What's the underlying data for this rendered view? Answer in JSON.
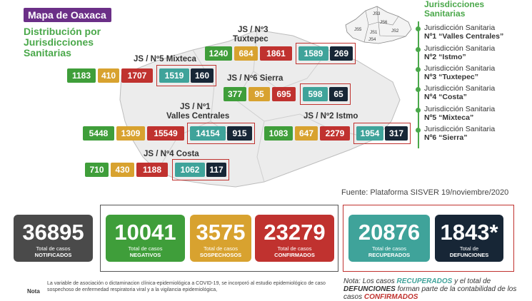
{
  "header": {
    "title": "Mapa de Oaxaca",
    "subtitle": "Distribución por Jurisdicciones Sanitarias"
  },
  "jurisdictions": {
    "tuxtepec": {
      "label1": "JS / Nº3",
      "label2": "Tuxtepec",
      "values": [
        "1240",
        "684",
        "1861",
        "1589",
        "269"
      ]
    },
    "mixteca": {
      "label1": "JS / Nº5 Mixteca",
      "values": [
        "1183",
        "410",
        "1707",
        "1519",
        "160"
      ]
    },
    "sierra": {
      "label1": "JS / Nº6 Sierra",
      "values": [
        "377",
        "95",
        "695",
        "598",
        "65"
      ]
    },
    "valles": {
      "label1": "JS / Nº1",
      "label2": "Valles Centrales",
      "values": [
        "5448",
        "1309",
        "15549",
        "14154",
        "915"
      ]
    },
    "istmo": {
      "label1": "JS / Nº2 Istmo",
      "values": [
        "1083",
        "647",
        "2279",
        "1954",
        "317"
      ]
    },
    "costa": {
      "label1": "JS / Nº4 Costa",
      "values": [
        "710",
        "430",
        "1188",
        "1062",
        "117"
      ]
    }
  },
  "legend": {
    "title": "Jurisdicciones Sanitarias",
    "items": [
      {
        "line1": "Jurisdicción Sanitaria",
        "line2": "Nº1 “Valles Centrales”"
      },
      {
        "line1": "Jurisdicción Sanitaria",
        "line2": "Nº2 “Istmo”"
      },
      {
        "line1": "Jurisdicción Sanitaria",
        "line2": "Nº3 “Tuxtepec”"
      },
      {
        "line1": "Jurisdicción Sanitaria",
        "line2": "Nº4 “Costa”"
      },
      {
        "line1": "Jurisdicción Sanitaria",
        "line2": "Nº5 “Mixteca”"
      },
      {
        "line1": "Jurisdicción Sanitaria",
        "line2": "Nº6 “Sierra”"
      }
    ],
    "minimap_labels": [
      "JS3",
      "JS6",
      "JS5",
      "JS1",
      "JS2",
      "JS4"
    ]
  },
  "source": "Fuente: Plataforma SISVER 19/noviembre/2020",
  "totals": [
    {
      "value": "36895",
      "line1": "Total de casos",
      "line2": "NOTIFICADOS",
      "color": "#4a4a4a"
    },
    {
      "value": "10041",
      "line1": "Total de casos",
      "line2": "NEGATIVOS",
      "color": "#3f9e3a"
    },
    {
      "value": "3575",
      "line1": "Total de casos",
      "line2": "SOSPECHOSOS",
      "color": "#d8a22f"
    },
    {
      "value": "23279",
      "line1": "Total de casos",
      "line2": "CONFIRMADOS",
      "color": "#c0322f"
    },
    {
      "value": "20876",
      "line1": "Total de casos",
      "line2": "RECUPERADOS",
      "color": "#3fa39a"
    },
    {
      "value": "1843*",
      "line1": "Total de",
      "line2": "DEFUNCIONES",
      "color": "#172636"
    }
  ],
  "notes": {
    "label": "Nota",
    "text": "La variable de asociación o dictaminacion clínica-epidemiológica a COVID-19, se incorporó al estudio epidemiológico de caso sospechoso de enfermedad respiratoria viral y a la vigilancia epidemiológica,",
    "note2_prefix": "Nota:",
    "note2_a": "Los casos",
    "note2_recuperados": "RECUPERADOS",
    "note2_b": "y el total de",
    "note2_defunciones": "DEFUNCIONES",
    "note2_c": "forman parte de la contabilidad de los casos",
    "note2_confirmados": "CONFIRMADOS"
  }
}
